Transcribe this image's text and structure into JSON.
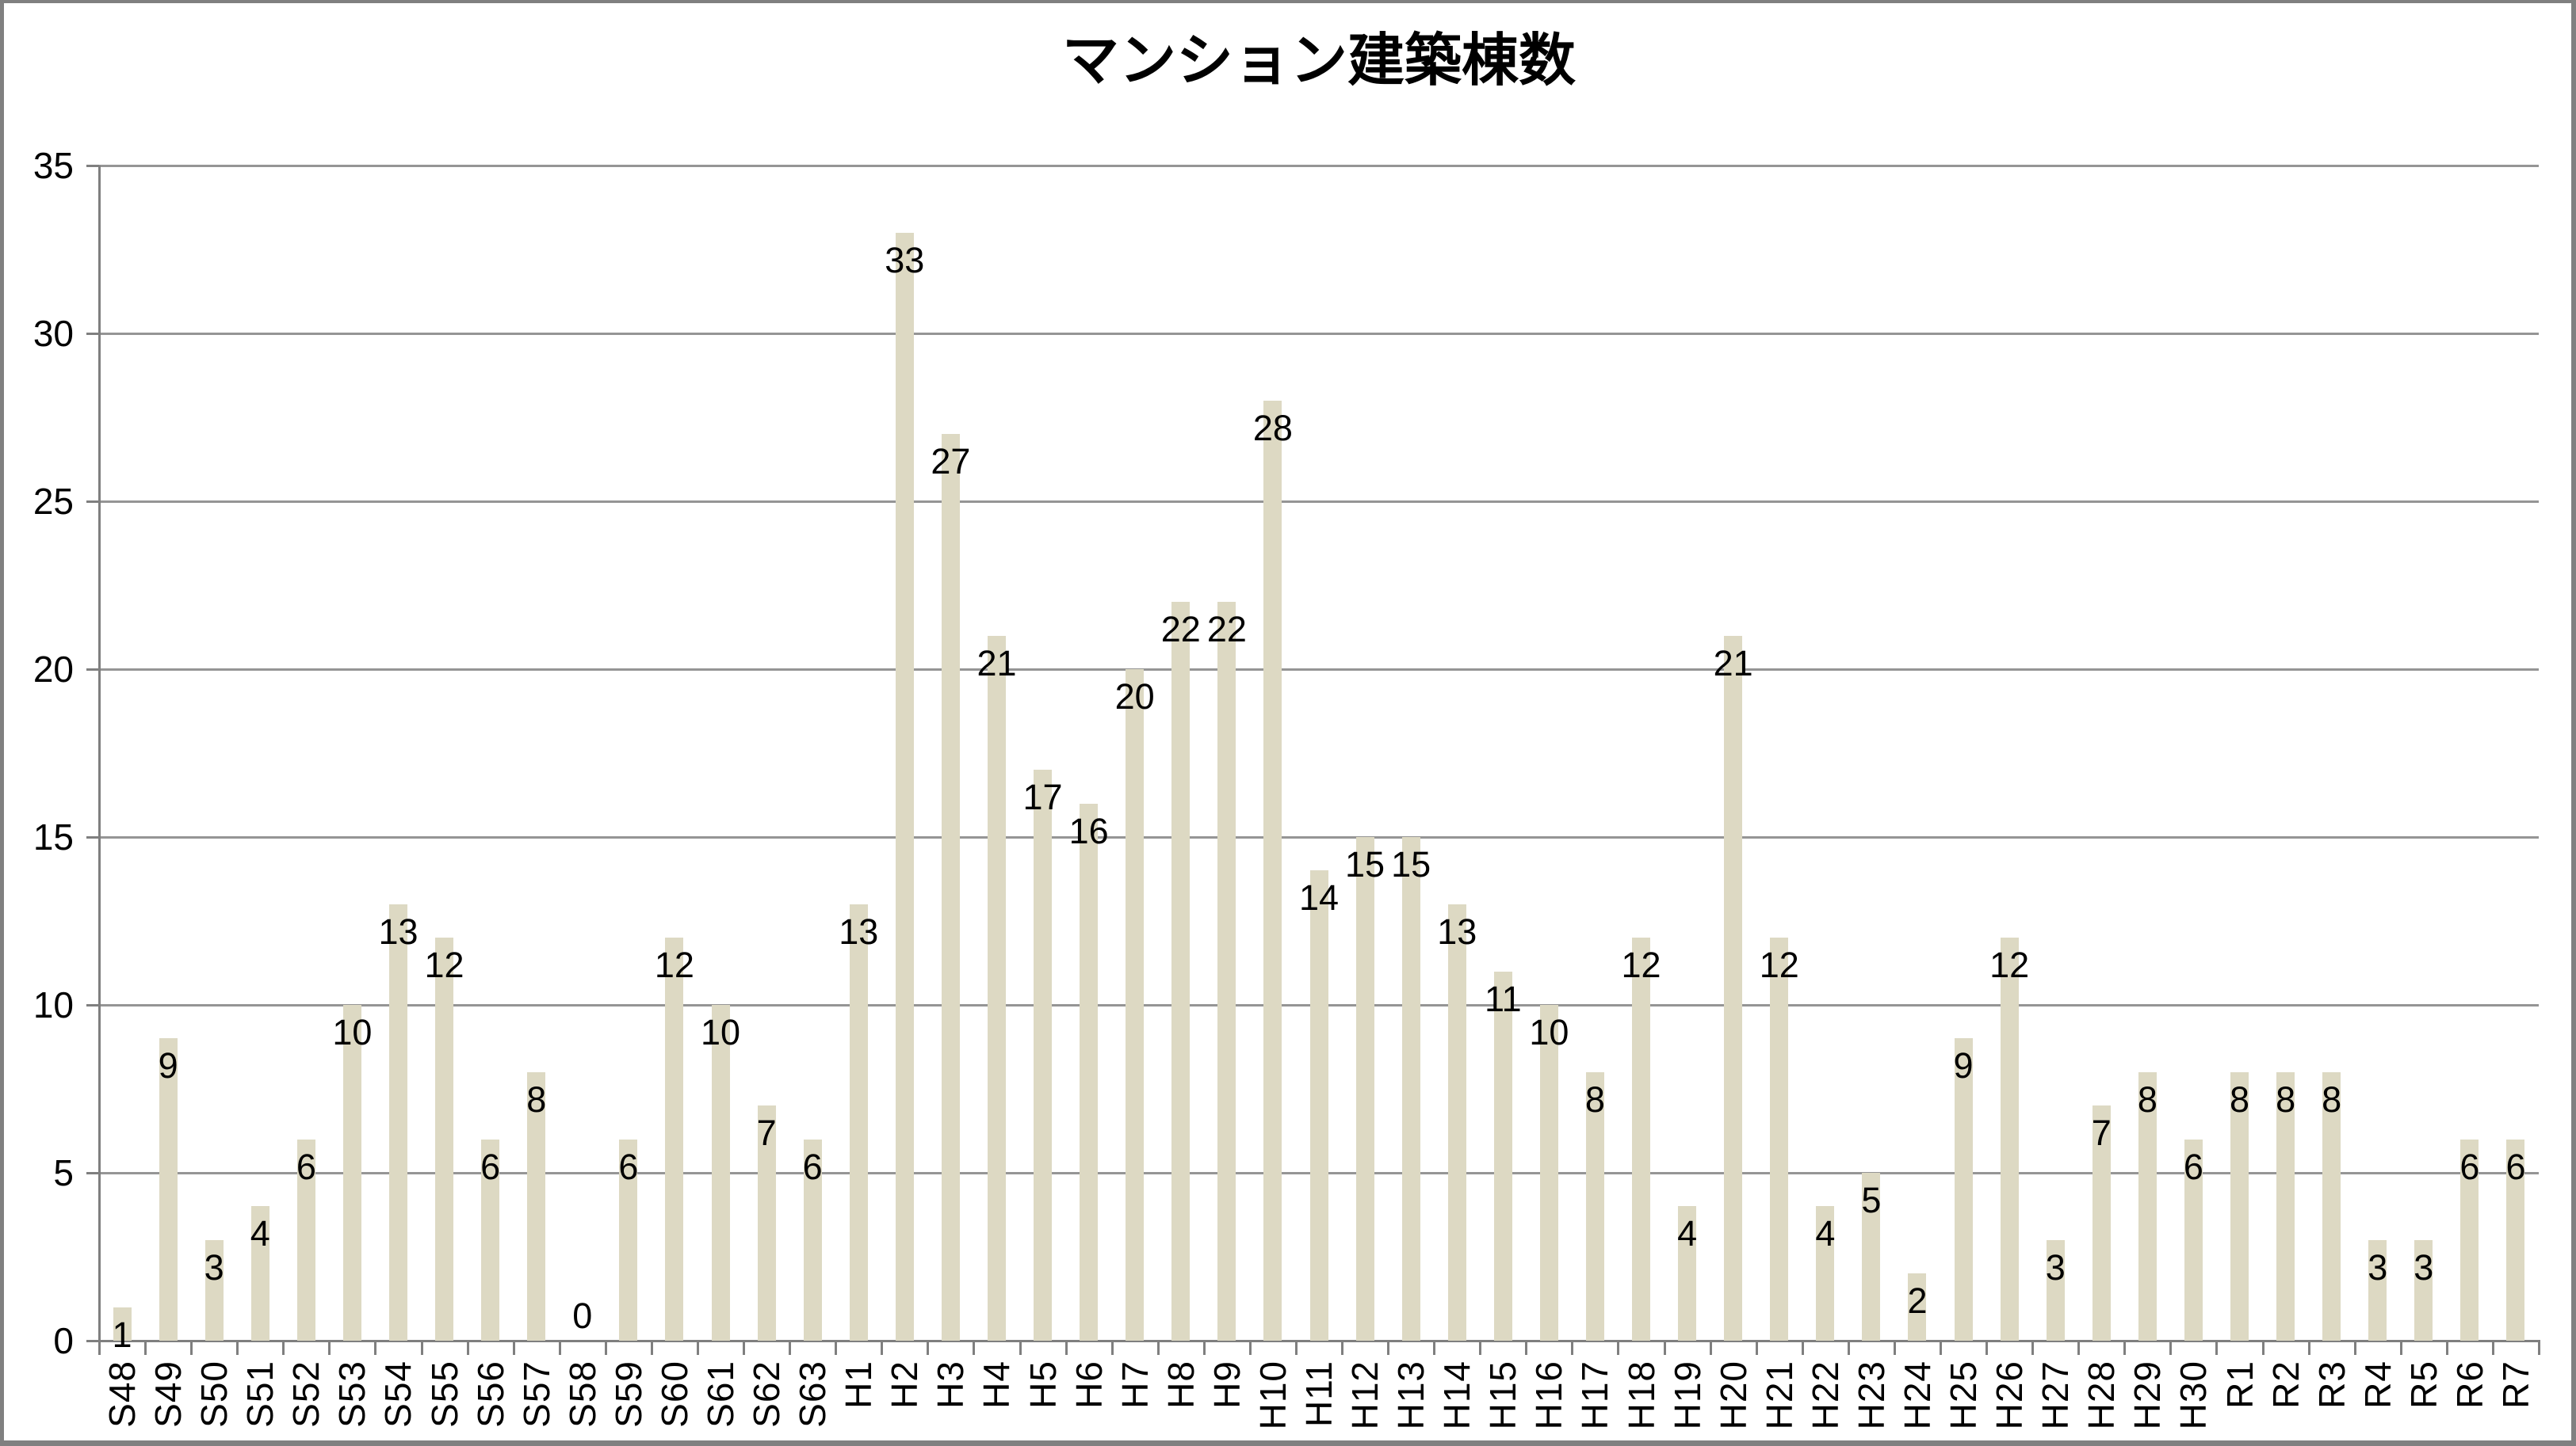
{
  "chart_data": {
    "type": "bar",
    "title": "マンション建築棟数",
    "categories": [
      "S48",
      "S49",
      "S50",
      "S51",
      "S52",
      "S53",
      "S54",
      "S55",
      "S56",
      "S57",
      "S58",
      "S59",
      "S60",
      "S61",
      "S62",
      "S63",
      "H1",
      "H2",
      "H3",
      "H4",
      "H5",
      "H6",
      "H7",
      "H8",
      "H9",
      "H10",
      "H11",
      "H12",
      "H13",
      "H14",
      "H15",
      "H16",
      "H17",
      "H18",
      "H19",
      "H20",
      "H21",
      "H22",
      "H23",
      "H24",
      "H25",
      "H26",
      "H27",
      "H28",
      "H29",
      "H30",
      "R1",
      "R2",
      "R3",
      "R4",
      "R5",
      "R6",
      "R7"
    ],
    "values": [
      1,
      9,
      3,
      4,
      6,
      10,
      13,
      12,
      6,
      8,
      0,
      6,
      12,
      10,
      7,
      6,
      13,
      33,
      27,
      21,
      17,
      16,
      20,
      22,
      22,
      28,
      14,
      15,
      15,
      13,
      11,
      10,
      8,
      12,
      4,
      21,
      12,
      4,
      5,
      2,
      9,
      12,
      3,
      7,
      8,
      6,
      8,
      8,
      8,
      3,
      3,
      6,
      6
    ],
    "xlabel": "",
    "ylabel": "",
    "ylim": [
      0,
      35
    ],
    "ytick_step": 5,
    "ytick_labels": [
      "35",
      "30",
      "25",
      "20",
      "15",
      "10",
      "5",
      "0"
    ],
    "grid": "horizontal",
    "legend": "none",
    "data_labels": "inside-end"
  },
  "colors": {
    "bar_fill": "#DDD9C3",
    "gridline": "#959595",
    "axis": "#7F7F7F",
    "tick": "#7F7F7F",
    "text": "#000000",
    "frame_border": "#808080",
    "background": "#FFFFFF"
  }
}
